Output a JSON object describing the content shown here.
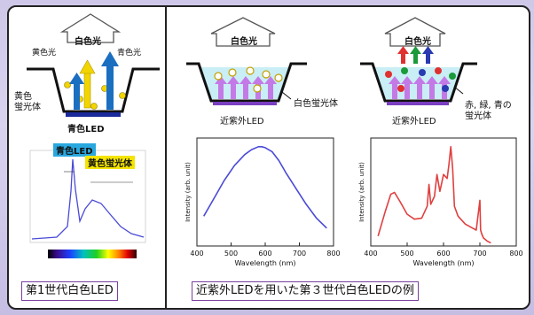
{
  "captions": {
    "left": "第1世代白色LED",
    "right": "近紫外LEDを用いた第３世代白色LEDの例"
  },
  "gen1": {
    "white_light": "白色光",
    "yellow_light": "黄色光",
    "blue_light": "青色光",
    "phosphor_label_line1": "黄色",
    "phosphor_label_line2": "蛍光体",
    "led_label": "青色LED",
    "spectrum_tags": {
      "blue": "青色LED",
      "yellow": "黄色蛍光体"
    },
    "colors": {
      "blue_arrow": "#1a6fc0",
      "yellow_arrow": "#f2d400",
      "tag_blue": "#29a8e0",
      "tag_yellow": "#f4e400"
    }
  },
  "gen3_single": {
    "white_light": "白色光",
    "phosphor_label": "白色蛍光体",
    "led_label": "近紫外LED",
    "colors": {
      "arrow": "#c47ae6",
      "liquid": "#c9eef5"
    }
  },
  "gen3_rgb": {
    "white_light": "白色光",
    "phosphor_label_line1": "赤, 緑, 青の",
    "phosphor_label_line2": "蛍光体",
    "led_label": "近紫外LED",
    "colors": {
      "red": "#e03030",
      "green": "#1a9a3a",
      "blue": "#2a3ab0"
    }
  },
  "chart_data": [
    {
      "type": "line",
      "xlabel": "Wavelength (nm)",
      "ylabel": "Intensity (arb. unit)",
      "xlim": [
        400,
        800
      ],
      "xticks": [
        "400",
        "500",
        "600",
        "700",
        "800"
      ],
      "color": "#4a4ad8",
      "series": [
        {
          "x": [
            420,
            450,
            480,
            510,
            540,
            560,
            580,
            590,
            600,
            620,
            640,
            660,
            690,
            720,
            750,
            780
          ],
          "y": [
            0.3,
            0.48,
            0.66,
            0.81,
            0.92,
            0.97,
            1.0,
            1.0,
            0.99,
            0.95,
            0.86,
            0.74,
            0.58,
            0.42,
            0.28,
            0.18
          ]
        }
      ]
    },
    {
      "type": "line",
      "xlabel": "Wavelength (nm)",
      "ylabel": "Intensity (arb. unit)",
      "xlim": [
        400,
        800
      ],
      "xticks": [
        "400",
        "500",
        "600",
        "700",
        "800"
      ],
      "color": "#e04040",
      "series": [
        {
          "x": [
            420,
            440,
            455,
            465,
            480,
            500,
            520,
            540,
            555,
            560,
            565,
            575,
            582,
            590,
            600,
            610,
            615,
            620,
            625,
            630,
            640,
            660,
            680,
            690,
            700,
            702,
            705,
            710,
            720,
            730
          ],
          "y": [
            0.1,
            0.35,
            0.52,
            0.54,
            0.45,
            0.32,
            0.27,
            0.28,
            0.4,
            0.62,
            0.42,
            0.5,
            0.72,
            0.55,
            0.72,
            0.68,
            0.82,
            1.0,
            0.78,
            0.4,
            0.3,
            0.22,
            0.18,
            0.16,
            0.46,
            0.16,
            0.12,
            0.08,
            0.05,
            0.03
          ]
        }
      ]
    }
  ]
}
